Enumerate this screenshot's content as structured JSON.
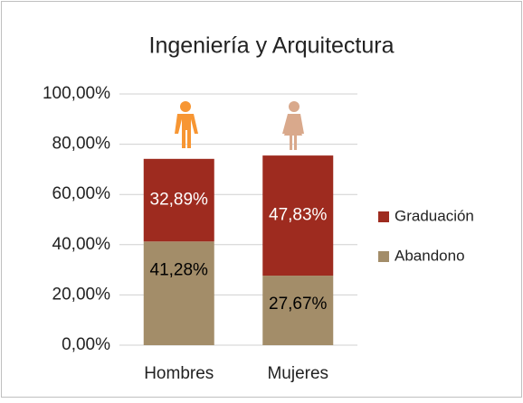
{
  "chart_data": {
    "type": "stacked_bar",
    "title": "Ingeniería y Arquitectura",
    "categories": [
      "Hombres",
      "Mujeres"
    ],
    "series": [
      {
        "name": "Abandono",
        "color": "#a38d69",
        "values": [
          41.28,
          27.67
        ],
        "value_labels": [
          "41,28%",
          "27,67%"
        ]
      },
      {
        "name": "Graduación",
        "color": "#9e2b1f",
        "values": [
          32.89,
          47.83
        ],
        "value_labels": [
          "32,89%",
          "47,83%"
        ]
      }
    ],
    "ylim": [
      0,
      100
    ],
    "yticks": [
      {
        "value": 0,
        "label": "0,00%"
      },
      {
        "value": 20,
        "label": "20,00%"
      },
      {
        "value": 40,
        "label": "40,00%"
      },
      {
        "value": 60,
        "label": "60,00%"
      },
      {
        "value": 80,
        "label": "80,00%"
      },
      {
        "value": 100,
        "label": "100,00%"
      }
    ],
    "grid": true,
    "legend": "right"
  }
}
